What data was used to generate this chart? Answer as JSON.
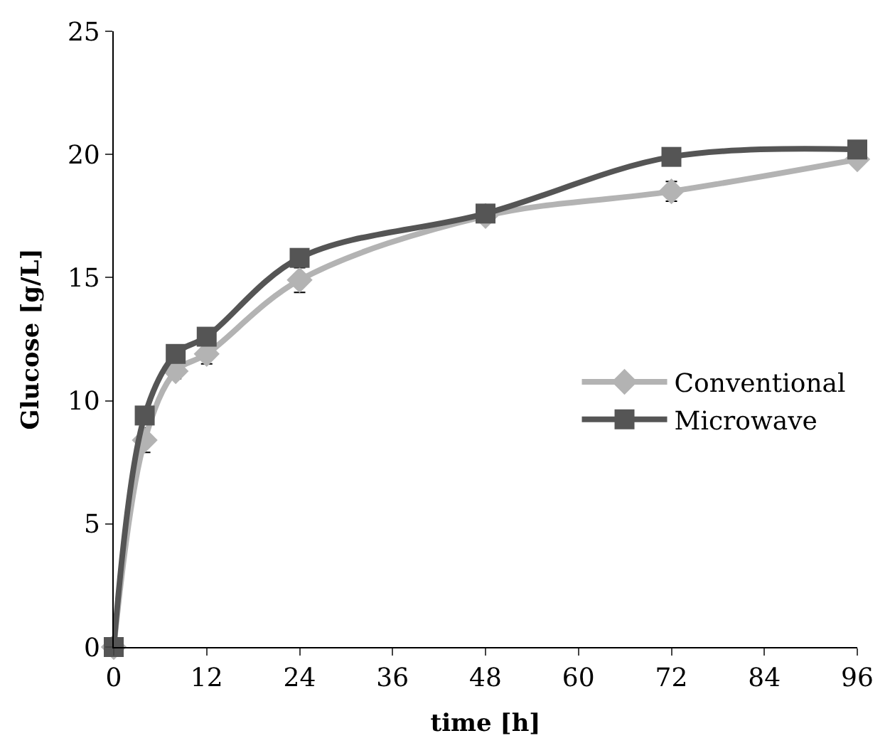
{
  "chart_data": {
    "type": "line",
    "xlabel": "time [h]",
    "ylabel": "Glucose [g/L]",
    "x": [
      0,
      4,
      8,
      12,
      24,
      48,
      72,
      96
    ],
    "series": [
      {
        "name": "Conventional",
        "color": "#b3b3b3",
        "marker": "diamond",
        "values": [
          0,
          8.4,
          11.2,
          11.9,
          14.9,
          17.5,
          18.5,
          19.8
        ],
        "errors": [
          null,
          0.5,
          0.3,
          0.4,
          0.5,
          null,
          0.4,
          null
        ]
      },
      {
        "name": "Microwave",
        "color": "#555555",
        "marker": "square",
        "values": [
          0,
          9.4,
          11.9,
          12.6,
          15.8,
          17.6,
          19.9,
          20.2
        ]
      }
    ],
    "xlim": [
      0,
      96
    ],
    "xticks": [
      0,
      12,
      24,
      36,
      48,
      60,
      72,
      84,
      96
    ],
    "ylim": [
      0,
      25
    ],
    "yticks": [
      0,
      5,
      10,
      15,
      20,
      25
    ],
    "legend": "right",
    "line_style": "solid"
  }
}
